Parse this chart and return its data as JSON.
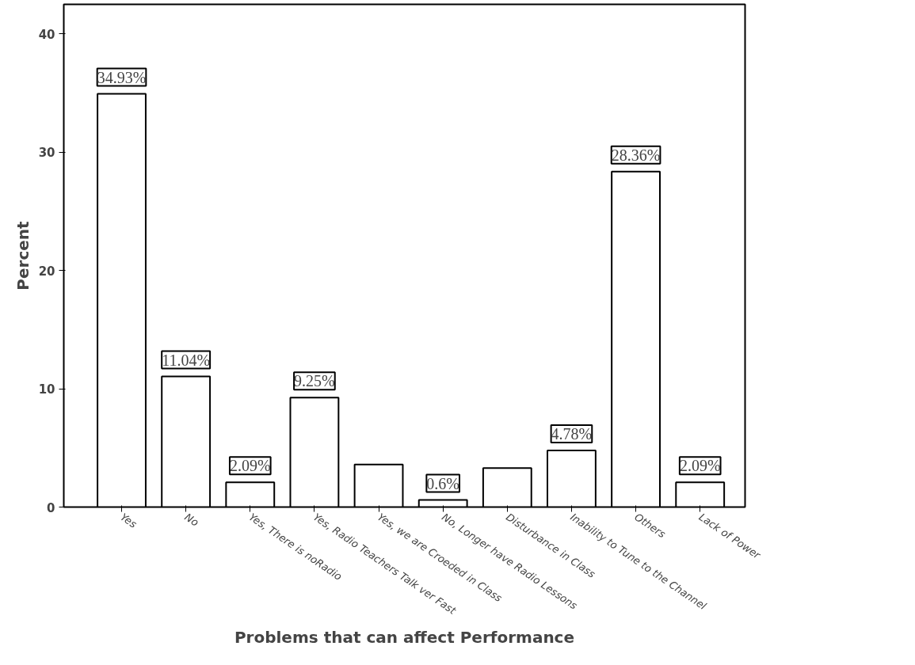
{
  "chart_data": {
    "type": "bar",
    "xlabel": "Problems that can affect Performance",
    "ylabel": "Percent",
    "categories": [
      "Yes",
      "No",
      "Yes, There is noRadio",
      "Yes, Radio Teachers Talk ver Fast",
      "Yes, we are Croeded in Class",
      "No, Longer have Radio Lessons",
      "Disturbance in Class",
      "Inability to Tune to the Channel",
      "Others",
      "Lack of Power"
    ],
    "values": [
      34.93,
      11.04,
      2.09,
      9.25,
      3.6,
      0.6,
      3.3,
      4.78,
      28.36,
      2.09
    ],
    "value_labels": [
      "34.93%",
      "11.04%",
      "2.09%",
      "9.25%",
      null,
      "0.6%",
      null,
      "4.78%",
      "28.36%",
      "2.09%"
    ],
    "color": "#ffffff",
    "ylim": [
      0,
      42.5
    ],
    "yticks": [
      0,
      10,
      20,
      30,
      40
    ],
    "grid": false
  }
}
